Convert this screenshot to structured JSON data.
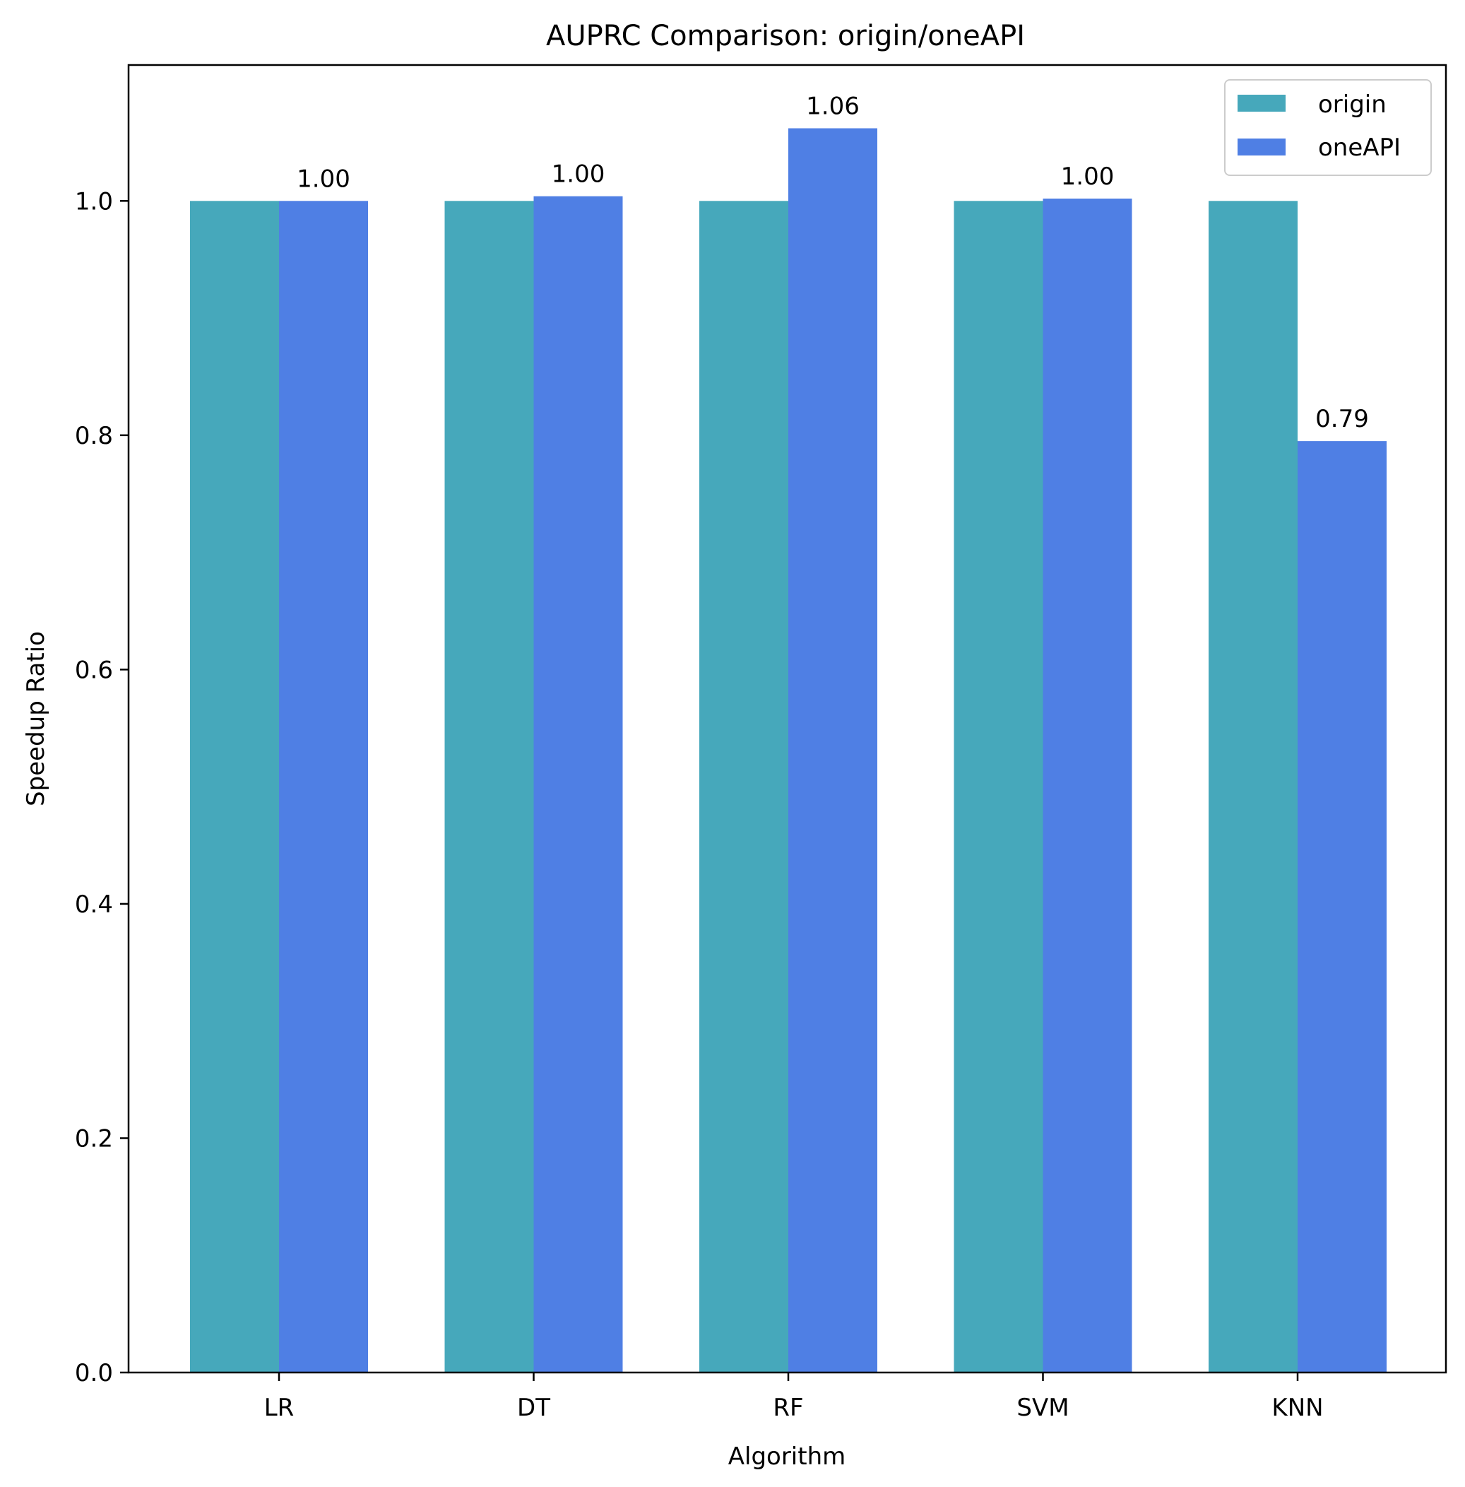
{
  "chart_data": {
    "type": "bar",
    "title": "AUPRC Comparison: origin/oneAPI",
    "xlabel": "Algorithm",
    "ylabel": "Speedup Ratio",
    "categories": [
      "LR",
      "DT",
      "RF",
      "SVM",
      "KNN"
    ],
    "series": [
      {
        "name": "origin",
        "color": "#46a8bb",
        "values": [
          1.0,
          1.0,
          1.0,
          1.0,
          1.0
        ],
        "labels": [
          "",
          "",
          "",
          "",
          ""
        ]
      },
      {
        "name": "oneAPI",
        "color": "#4f7fe4",
        "values": [
          1.0,
          1.004,
          1.062,
          1.002,
          0.795
        ],
        "labels": [
          "1.00",
          "1.00",
          "1.06",
          "1.00",
          "0.79"
        ]
      }
    ],
    "ylim": [
      0,
      1.116
    ],
    "yticks": [
      0.0,
      0.2,
      0.4,
      0.6,
      0.8,
      1.0
    ],
    "ytick_labels": [
      "0.0",
      "0.2",
      "0.4",
      "0.6",
      "0.8",
      "1.0"
    ],
    "grid": false,
    "legend_position": "top-right"
  }
}
